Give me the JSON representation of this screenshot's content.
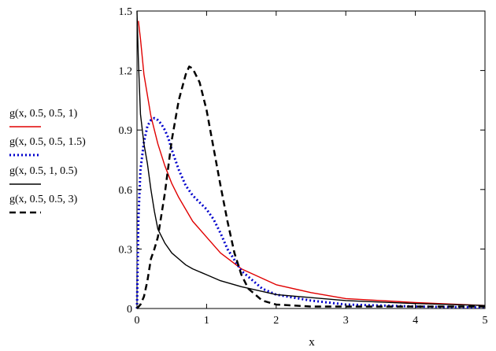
{
  "chart_data": {
    "type": "line",
    "title": "",
    "xlabel": "x",
    "ylabel": "",
    "xlim": [
      0,
      5
    ],
    "ylim": [
      0,
      1.5
    ],
    "xticks": [
      "0",
      "1",
      "2",
      "3",
      "4",
      "5"
    ],
    "yticks": [
      "0",
      "0.3",
      "0.6",
      "0.9",
      "1.2",
      "1.5"
    ],
    "grid": false,
    "legend_position": "left",
    "series": [
      {
        "name": "g(x, 0.5, 0.5, 1)",
        "color": "#e00000",
        "style": "solid",
        "x": [
          0.02,
          0.05,
          0.1,
          0.2,
          0.3,
          0.4,
          0.5,
          0.6,
          0.8,
          1.0,
          1.2,
          1.5,
          2.0,
          2.5,
          3.0,
          4.0,
          5.0
        ],
        "y": [
          1.45,
          1.36,
          1.18,
          0.97,
          0.83,
          0.72,
          0.63,
          0.56,
          0.44,
          0.36,
          0.28,
          0.2,
          0.12,
          0.08,
          0.05,
          0.03,
          0.015
        ]
      },
      {
        "name": "g(x, 0.5, 0.5, 1.5)",
        "color": "#0000cc",
        "style": "dotted",
        "x": [
          0.0,
          0.02,
          0.05,
          0.1,
          0.15,
          0.2,
          0.25,
          0.3,
          0.35,
          0.4,
          0.45,
          0.5,
          0.6,
          0.7,
          0.8,
          1.0,
          1.1,
          1.2,
          1.3,
          1.5,
          1.8,
          2.0,
          2.5,
          3.0,
          4.0,
          5.0
        ],
        "y": [
          0.0,
          0.45,
          0.7,
          0.84,
          0.92,
          0.95,
          0.96,
          0.95,
          0.93,
          0.9,
          0.86,
          0.8,
          0.7,
          0.62,
          0.57,
          0.5,
          0.45,
          0.38,
          0.3,
          0.19,
          0.1,
          0.07,
          0.04,
          0.02,
          0.01,
          0.005
        ]
      },
      {
        "name": "g(x, 0.5, 1, 0.5)",
        "color": "#000000",
        "style": "solid",
        "x": [
          0.0,
          0.02,
          0.05,
          0.1,
          0.15,
          0.2,
          0.25,
          0.3,
          0.4,
          0.5,
          0.6,
          0.7,
          0.8,
          1.0,
          1.2,
          1.5,
          2.0,
          3.0,
          4.0,
          5.0
        ],
        "y": [
          1.5,
          1.25,
          0.98,
          0.83,
          0.73,
          0.6,
          0.49,
          0.4,
          0.33,
          0.28,
          0.25,
          0.22,
          0.2,
          0.17,
          0.14,
          0.11,
          0.07,
          0.04,
          0.025,
          0.015
        ]
      },
      {
        "name": "g(x, 0.5, 0.5, 3)",
        "color": "#000000",
        "style": "dashed",
        "x": [
          0.0,
          0.05,
          0.1,
          0.15,
          0.2,
          0.25,
          0.3,
          0.4,
          0.5,
          0.6,
          0.7,
          0.75,
          0.8,
          0.9,
          1.0,
          1.1,
          1.2,
          1.3,
          1.4,
          1.5,
          1.6,
          1.8,
          2.0,
          2.5,
          3.0,
          4.0,
          5.0
        ],
        "y": [
          0.0,
          0.02,
          0.06,
          0.14,
          0.25,
          0.3,
          0.36,
          0.58,
          0.85,
          1.05,
          1.18,
          1.22,
          1.21,
          1.14,
          1.0,
          0.81,
          0.62,
          0.44,
          0.28,
          0.17,
          0.1,
          0.04,
          0.02,
          0.01,
          0.01,
          0.01,
          0.01
        ]
      }
    ]
  }
}
